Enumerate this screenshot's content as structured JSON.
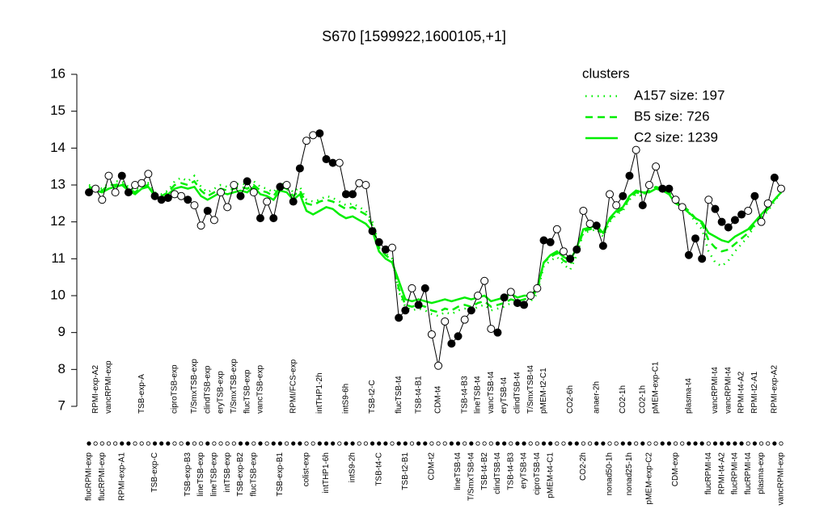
{
  "chart_data": {
    "type": "line",
    "title": "S670 [1599922,1600105,+1]",
    "categories": [
      "flucRPMI-exp",
      "RPMI-exp-A2",
      "flucRPMI-exp",
      "vancRPMI-exp",
      null,
      "RPMI-exp-A1",
      null,
      null,
      "TSB-exp-A",
      null,
      "TSB-exp-C",
      null,
      null,
      "ciproTSB-exp",
      null,
      "TSB-exp-B3",
      "T/SmxTSB-exp",
      "lineTSB-exp",
      "clindTSB-exp",
      "lineTSB-exp",
      "eryTSB-exp",
      "intTSB-exp",
      "T/SmxTSB-exp",
      "TSB-exp-B2",
      "flucTSB-exp",
      "flucTSB-exp",
      "vancTSB-exp",
      null,
      null,
      "TSB-exp-B1",
      null,
      "RPMI/FCS-exp",
      null,
      "colist-exp",
      null,
      "intTHP1-2h",
      "intTHP1-6h",
      null,
      null,
      "intS9-6h",
      "intS9-2h",
      null,
      null,
      "TSB-t2-C",
      "TSB-t4-C",
      null,
      null,
      "flucTSB-t4",
      "TSB-t2-B1",
      null,
      "TSB-t4-B1",
      null,
      "CDM-t2",
      "CDM-t4",
      null,
      null,
      "lineTSB-t4",
      "TSB-t4-B3",
      "T/SmxTSB-t4",
      "lineTSB-t4",
      "TSB-t4-B2",
      "vancTSB-t4",
      "clindTSB-t4",
      "eryTSB-t4",
      "TSB-t4-B3",
      "clindTSB-t4",
      "eryTSB-t4",
      "T/SmxTSB-t4",
      "ciproTSB-t4",
      "pMEM-t2-C1",
      "pMEM-t4-C1",
      null,
      null,
      "CO2-6h",
      null,
      "CO2-2h",
      null,
      "anaer-2h",
      null,
      "nonad50-1h",
      null,
      "CO2-1h",
      "nonad25-1h",
      null,
      "CO2-1h",
      "pMEM-exp-C2",
      "pMEM-exp-C1",
      null,
      null,
      "CDM-exp",
      null,
      "plasma-t4",
      null,
      null,
      "flucRPMI-t4",
      "vancRPMI-t4",
      "RPMI-t4-A2",
      "vancRPMI-t4",
      "flucRPMI-t4",
      "RPMI-t4-A2",
      "flucRPMI-t4",
      "RPMI-t2-A1",
      "plasma-exp",
      null,
      "RPMI-exp-A2",
      "vancRPMI-exp"
    ],
    "values": [
      12.8,
      12.9,
      12.6,
      13.25,
      12.8,
      13.25,
      12.8,
      13.0,
      13.05,
      13.3,
      12.7,
      12.6,
      12.65,
      12.75,
      12.7,
      12.6,
      12.45,
      11.9,
      12.3,
      12.05,
      12.8,
      12.4,
      13.0,
      12.7,
      13.1,
      12.8,
      12.1,
      12.55,
      12.1,
      12.95,
      13.0,
      12.55,
      13.45,
      14.2,
      14.35,
      14.4,
      13.7,
      13.6,
      13.6,
      12.75,
      12.75,
      13.05,
      13.0,
      11.75,
      11.45,
      11.25,
      11.3,
      9.4,
      9.6,
      10.2,
      9.75,
      10.2,
      8.95,
      8.1,
      9.3,
      8.7,
      8.9,
      9.35,
      9.6,
      10.0,
      10.4,
      9.1,
      9.0,
      9.95,
      10.1,
      9.8,
      9.75,
      10.0,
      10.2,
      11.5,
      11.45,
      11.8,
      11.2,
      11.0,
      11.25,
      12.3,
      11.95,
      11.9,
      11.35,
      12.75,
      12.45,
      12.7,
      13.25,
      13.95,
      12.45,
      13.0,
      13.5,
      12.9,
      12.9,
      12.6,
      12.4,
      11.1,
      11.55,
      11.0,
      12.6,
      12.35,
      12.0,
      11.85,
      12.05,
      12.2,
      12.3,
      12.7,
      12.0,
      12.5,
      13.2,
      12.9
    ],
    "fills": [
      "#000000",
      "#ffffff",
      "#ffffff",
      "#ffffff",
      "#ffffff",
      "#000000",
      "#000000",
      "#ffffff",
      "#ffffff",
      "#ffffff",
      "#000000",
      "#000000",
      "#000000",
      "#ffffff",
      "#ffffff",
      "#000000",
      "#ffffff",
      "#ffffff",
      "#000000",
      "#ffffff",
      "#ffffff",
      "#ffffff",
      "#ffffff",
      "#000000",
      "#000000",
      "#ffffff",
      "#000000",
      "#ffffff",
      "#000000",
      "#000000",
      "#ffffff",
      "#000000",
      "#000000",
      "#ffffff",
      "#ffffff",
      "#000000",
      "#000000",
      "#000000",
      "#ffffff",
      "#000000",
      "#000000",
      "#ffffff",
      "#ffffff",
      "#000000",
      "#000000",
      "#000000",
      "#ffffff",
      "#000000",
      "#000000",
      "#ffffff",
      "#000000",
      "#000000",
      "#ffffff",
      "#ffffff",
      "#ffffff",
      "#000000",
      "#000000",
      "#ffffff",
      "#000000",
      "#ffffff",
      "#ffffff",
      "#ffffff",
      "#000000",
      "#000000",
      "#ffffff",
      "#000000",
      "#000000",
      "#ffffff",
      "#ffffff",
      "#000000",
      "#000000",
      "#ffffff",
      "#ffffff",
      "#000000",
      "#000000",
      "#ffffff",
      "#ffffff",
      "#000000",
      "#000000",
      "#ffffff",
      "#ffffff",
      "#000000",
      "#000000",
      "#ffffff",
      "#000000",
      "#ffffff",
      "#ffffff",
      "#000000",
      "#000000",
      "#ffffff",
      "#ffffff",
      "#000000",
      "#000000",
      "#000000",
      "#ffffff",
      "#000000",
      "#000000",
      "#000000",
      "#000000",
      "#000000",
      "#ffffff",
      "#000000",
      "#ffffff",
      "#ffffff",
      "#000000",
      "#ffffff"
    ],
    "color": "#000000",
    "legend_title": "clusters",
    "legend": "topright",
    "series": [
      {
        "name": "A157 size: 197",
        "color": "#00ee00",
        "dash": "dotted",
        "values": [
          13.0,
          12.95,
          12.9,
          13.05,
          13.1,
          13.1,
          12.95,
          12.85,
          13.0,
          13.05,
          12.8,
          12.75,
          12.85,
          13.1,
          13.2,
          13.1,
          13.25,
          12.95,
          12.8,
          12.9,
          13.0,
          12.95,
          13.0,
          13.05,
          13.0,
          13.1,
          12.95,
          12.9,
          12.8,
          13.05,
          13.0,
          12.8,
          12.95,
          12.6,
          12.55,
          12.6,
          12.7,
          12.65,
          12.55,
          12.45,
          12.5,
          12.4,
          12.3,
          12.0,
          11.4,
          11.15,
          11.0,
          10.1,
          9.7,
          9.6,
          9.65,
          9.6,
          9.5,
          9.45,
          9.55,
          9.5,
          9.6,
          9.65,
          9.6,
          9.7,
          9.75,
          9.6,
          9.65,
          9.7,
          9.8,
          9.75,
          9.8,
          9.85,
          10.05,
          10.8,
          10.95,
          11.05,
          10.85,
          10.7,
          11.1,
          11.7,
          11.75,
          11.8,
          11.6,
          12.0,
          12.2,
          12.3,
          12.6,
          12.75,
          12.7,
          12.8,
          12.9,
          12.85,
          12.75,
          12.5,
          12.4,
          12.25,
          12.0,
          11.8,
          11.2,
          10.9,
          10.8,
          10.95,
          11.2,
          11.4,
          11.6,
          11.9,
          12.1,
          12.3,
          12.55,
          12.8
        ]
      },
      {
        "name": "B5 size: 726",
        "color": "#00ee00",
        "dash": "dashed",
        "values": [
          12.95,
          12.9,
          12.85,
          13.0,
          13.0,
          13.05,
          12.9,
          12.8,
          12.95,
          13.0,
          12.75,
          12.7,
          12.8,
          13.0,
          13.05,
          13.0,
          13.1,
          12.85,
          12.7,
          12.8,
          12.9,
          12.85,
          12.9,
          12.95,
          12.9,
          13.0,
          12.85,
          12.8,
          12.7,
          12.95,
          12.9,
          12.7,
          12.85,
          12.5,
          12.45,
          12.55,
          12.6,
          12.55,
          12.45,
          12.35,
          12.4,
          12.3,
          12.2,
          11.9,
          11.3,
          11.1,
          10.95,
          10.2,
          9.75,
          9.7,
          9.75,
          9.7,
          9.6,
          9.55,
          9.65,
          9.6,
          9.7,
          9.75,
          9.7,
          9.8,
          9.85,
          9.7,
          9.75,
          9.8,
          9.9,
          9.85,
          9.9,
          9.95,
          10.15,
          10.9,
          11.05,
          11.15,
          10.95,
          10.85,
          11.2,
          11.75,
          11.8,
          11.85,
          11.65,
          12.05,
          12.25,
          12.35,
          12.65,
          12.8,
          12.75,
          12.85,
          12.95,
          12.9,
          12.8,
          12.55,
          12.45,
          12.3,
          12.1,
          11.95,
          11.5,
          11.3,
          11.2,
          11.25,
          11.4,
          11.55,
          11.7,
          11.95,
          12.15,
          12.35,
          12.6,
          12.8
        ]
      },
      {
        "name": "C2 size: 1239",
        "color": "#00ee00",
        "dash": "solid",
        "values": [
          12.9,
          12.85,
          12.8,
          12.9,
          12.95,
          13.0,
          12.85,
          12.75,
          12.9,
          12.95,
          12.7,
          12.6,
          12.75,
          12.9,
          12.95,
          12.9,
          12.95,
          12.7,
          12.6,
          12.7,
          12.8,
          12.75,
          12.8,
          12.85,
          12.8,
          12.95,
          12.75,
          12.7,
          12.6,
          12.85,
          12.8,
          12.6,
          12.75,
          12.3,
          12.2,
          12.3,
          12.4,
          12.35,
          12.2,
          12.1,
          12.15,
          12.05,
          11.95,
          11.75,
          11.2,
          11.0,
          10.9,
          10.4,
          9.9,
          9.85,
          9.9,
          9.85,
          9.8,
          9.85,
          9.9,
          9.85,
          9.9,
          9.95,
          9.9,
          9.95,
          10.0,
          9.85,
          9.9,
          9.95,
          10.05,
          9.95,
          10.0,
          10.0,
          10.2,
          10.9,
          11.1,
          11.2,
          11.05,
          10.95,
          11.3,
          11.8,
          11.85,
          11.9,
          11.7,
          12.1,
          12.3,
          12.4,
          12.7,
          12.85,
          12.8,
          12.8,
          12.9,
          12.85,
          12.75,
          12.5,
          12.4,
          12.25,
          12.1,
          12.0,
          11.7,
          11.6,
          11.5,
          11.45,
          11.6,
          11.7,
          11.8,
          12.0,
          12.2,
          12.4,
          12.6,
          12.8
        ]
      }
    ],
    "ylim": [
      7,
      16
    ],
    "yticks": [
      7,
      8,
      9,
      10,
      11,
      12,
      13,
      14,
      15,
      16
    ]
  }
}
